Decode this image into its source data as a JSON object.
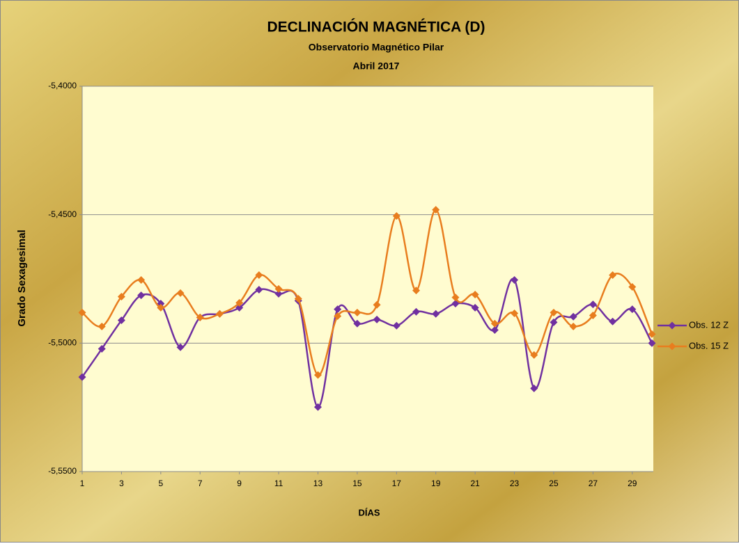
{
  "chart_data": {
    "type": "line",
    "title": "DECLINACIÓN MAGNÉTICA (D)",
    "subtitle": "Observatorio Magnético Pilar",
    "period": "Abril 2017",
    "x_label": "DÍAS",
    "y_label": "Grado Sexagesimal",
    "x": [
      1,
      2,
      3,
      4,
      5,
      6,
      7,
      8,
      9,
      10,
      11,
      12,
      13,
      14,
      15,
      16,
      17,
      18,
      19,
      20,
      21,
      22,
      23,
      24,
      25,
      26,
      27,
      28,
      29,
      30
    ],
    "xlim": [
      1,
      30
    ],
    "xticks": [
      1,
      3,
      5,
      7,
      9,
      11,
      13,
      15,
      17,
      19,
      21,
      23,
      25,
      27,
      29
    ],
    "ylim": [
      -5.55,
      -5.4
    ],
    "yticks": [
      {
        "value": -5.55,
        "label": "-5,5500"
      },
      {
        "value": -5.5,
        "label": "-5,5000"
      },
      {
        "value": -5.45,
        "label": "-5,4500"
      },
      {
        "value": -5.4,
        "label": "-5,4000"
      }
    ],
    "grid": true,
    "legend": "right",
    "smooth": true,
    "series": [
      {
        "name": "Obs. 12 Z",
        "color": "#7030a0",
        "values": [
          -5.5132,
          -5.5022,
          -5.4911,
          -5.4814,
          -5.4846,
          -5.5016,
          -5.49,
          -5.4886,
          -5.4862,
          -5.4792,
          -5.4808,
          -5.4835,
          -5.5249,
          -5.4868,
          -5.4924,
          -5.4908,
          -5.4932,
          -5.4878,
          -5.4886,
          -5.4846,
          -5.4862,
          -5.4949,
          -5.4754,
          -5.5176,
          -5.4919,
          -5.4897,
          -5.4849,
          -5.4916,
          -5.4868,
          -5.5
        ]
      },
      {
        "name": "Obs. 15 Z",
        "color": "#e87d1e",
        "values": [
          -5.4881,
          -5.4935,
          -5.4819,
          -5.4754,
          -5.4862,
          -5.4805,
          -5.49,
          -5.4886,
          -5.4843,
          -5.4735,
          -5.4789,
          -5.4827,
          -5.5124,
          -5.4895,
          -5.4881,
          -5.4851,
          -5.4505,
          -5.4795,
          -5.4481,
          -5.4822,
          -5.4811,
          -5.4924,
          -5.4884,
          -5.5046,
          -5.4881,
          -5.4935,
          -5.4892,
          -5.4735,
          -5.4781,
          -5.4965
        ]
      }
    ]
  }
}
